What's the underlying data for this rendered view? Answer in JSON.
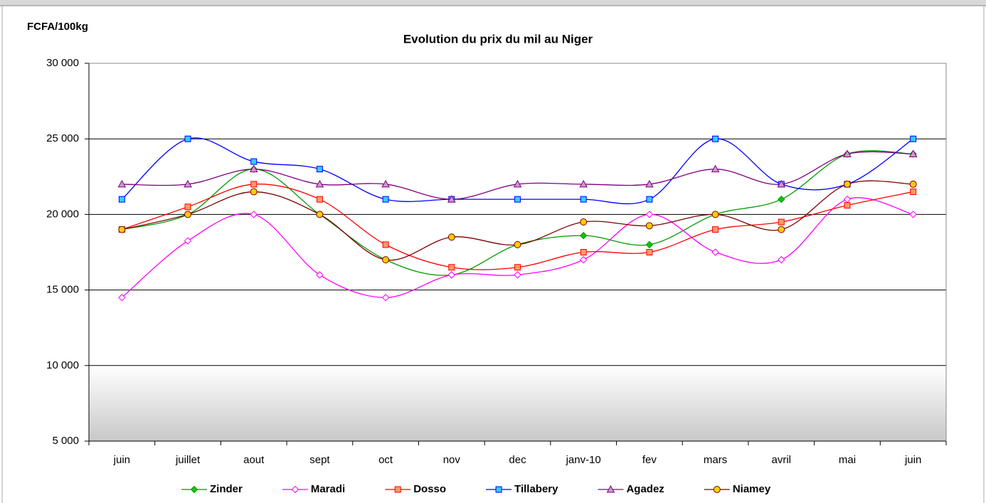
{
  "chart_data": {
    "type": "line",
    "title": "Evolution du prix du mil au Niger",
    "y_label": "FCFA/100kg",
    "categories": [
      "juin",
      "juillet",
      "aout",
      "sept",
      "oct",
      "nov",
      "dec",
      "janv-10",
      "fev",
      "mars",
      "avril",
      "mai",
      "juin"
    ],
    "ylim": [
      5000,
      30000
    ],
    "yticks": [
      {
        "value": 5000,
        "label": "5 000"
      },
      {
        "value": 10000,
        "label": "10 000"
      },
      {
        "value": 15000,
        "label": "15 000"
      },
      {
        "value": 20000,
        "label": "20 000"
      },
      {
        "value": 25000,
        "label": "25 000"
      },
      {
        "value": 30000,
        "label": "30 000"
      }
    ],
    "grid": true,
    "smooth": true,
    "legend": "bottom",
    "series": [
      {
        "name": "Zinder",
        "color": "#009900",
        "marker": "diamond",
        "marker_fill": "#00cc00",
        "values": [
          19000,
          20000,
          23000,
          20000,
          17000,
          16000,
          18000,
          18600,
          18000,
          20000,
          21000,
          24000,
          24000
        ]
      },
      {
        "name": "Maradi",
        "color": "#ff00ff",
        "marker": "diamond",
        "marker_fill": "#ffffff",
        "values": [
          14500,
          18250,
          20000,
          16000,
          14500,
          16000,
          16000,
          17000,
          20000,
          17500,
          17000,
          21000,
          20000
        ]
      },
      {
        "name": "Dosso",
        "color": "#ff0000",
        "marker": "square",
        "marker_fill": "#ff9966",
        "values": [
          19000,
          20500,
          22000,
          21000,
          18000,
          16500,
          16500,
          17500,
          17500,
          19000,
          19500,
          20600,
          21500
        ]
      },
      {
        "name": "Tillabery",
        "color": "#0000ff",
        "marker": "square",
        "marker_fill": "#33ccff",
        "values": [
          21000,
          25000,
          23500,
          23000,
          21000,
          21000,
          21000,
          21000,
          21000,
          25000,
          22000,
          22000,
          25000
        ]
      },
      {
        "name": "Agadez",
        "color": "#800080",
        "marker": "triangle",
        "marker_fill": "#cc99cc",
        "values": [
          22000,
          22000,
          23000,
          22000,
          22000,
          21000,
          22000,
          22000,
          22000,
          23000,
          22000,
          24000,
          24000
        ]
      },
      {
        "name": "Niamey",
        "color": "#800000",
        "marker": "circle",
        "marker_fill": "#ffcc00",
        "values": [
          19000,
          20000,
          21500,
          20000,
          17000,
          18500,
          18000,
          19500,
          19250,
          20000,
          19000,
          22000,
          22000
        ]
      }
    ]
  }
}
